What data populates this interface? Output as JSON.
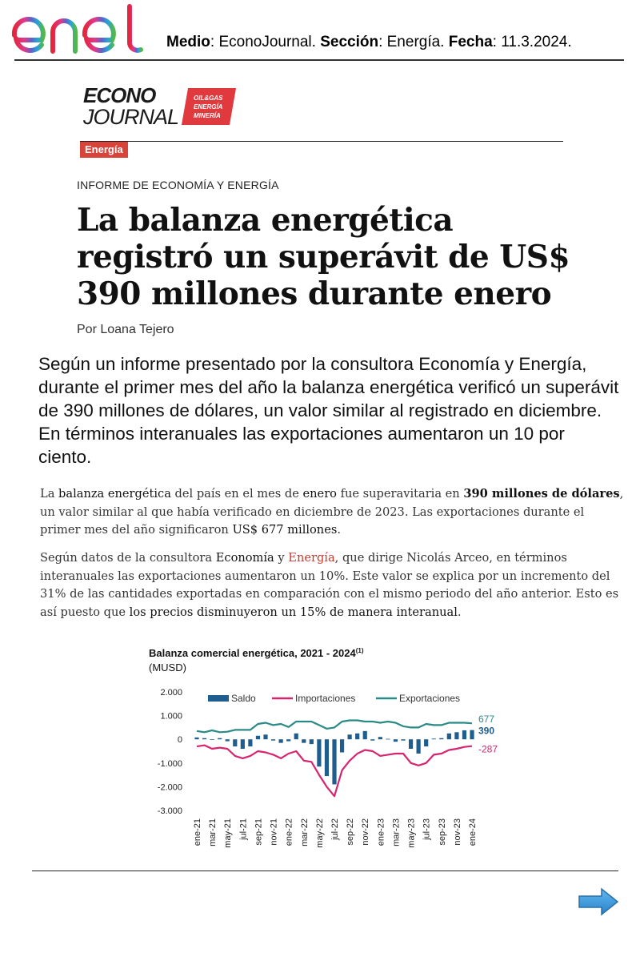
{
  "header": {
    "logo_text": "enel",
    "medio_label": "Medio",
    "medio_value": ": EconoJournal. ",
    "seccion_label": "Sección",
    "seccion_value": ": Energía. ",
    "fecha_label": "Fecha",
    "fecha_value": ": 11.3.2024."
  },
  "publication": {
    "name_line1": "ECONO",
    "name_line2": "JOURNAL",
    "badge_lines": [
      "OIL&GAS",
      "ENERGÍA",
      "MINERÍA"
    ]
  },
  "article": {
    "section": "Energía",
    "kicker": "INFORME DE ECONOMÍA Y ENERGÍA",
    "title": "La balanza energética registró un superávit de US$ 390 millones durante enero",
    "byline": "Por Loana Tejero",
    "lead": "Según un informe presentado por la consultora Economía y Energía, durante el primer mes del año la balanza energética verificó un superávit de 390 millones de dólares, un valor similar al registrado en diciembre. En términos interanuales las exportaciones aumentaron un 10 por ciento.",
    "p1": {
      "a": "La ",
      "b": "balanza energética",
      "c": " del país en el mes de ",
      "d": "enero",
      "e": " fue superavitaria en ",
      "f": "390 millones de dólares",
      "g": ", un valor similar al que había verificado en diciembre de 2023. Las exportaciones durante el primer mes del año significaron ",
      "h": "US$ 677 millones",
      "i": "."
    },
    "p2": {
      "a": "Según datos de la consultora ",
      "b": "Economía",
      "c": " y ",
      "d": "Energía",
      "e": ", que dirige Nicolás Arceo, en términos interanuales las exportaciones aumentaron un 10%. Este valor se explica por un incremento del 31% de las cantidades exportadas en comparación con el mismo periodo del año anterior. Esto es así puesto que ",
      "f": "los precios disminuyeron un 15% de manera interanual",
      "g": "."
    }
  },
  "chart_data": {
    "type": "bar+line",
    "title": "Balanza comercial energética, 2021 - 2024",
    "title_sup": "(1)",
    "subtitle": "(MUSD)",
    "y_ticks": [
      "2.000",
      "1.000",
      "0",
      "-1.000",
      "-2.000",
      "-3.000"
    ],
    "ylim": [
      -3000,
      2000
    ],
    "x_tick_labels": [
      "ene-21",
      "mar-21",
      "may-21",
      "jul-21",
      "sep-21",
      "nov-21",
      "ene-22",
      "mar-22",
      "may-22",
      "jul-22",
      "sep-22",
      "nov-22",
      "ene-23",
      "mar-23",
      "may-23",
      "jul-23",
      "sep-23",
      "nov-23",
      "ene-24"
    ],
    "legend": [
      "Saldo",
      "Importaciones",
      "Exportaciones"
    ],
    "colors": {
      "saldo": "#1f5d8f",
      "importaciones": "#d6246e",
      "exportaciones": "#2a8a85"
    },
    "end_labels": {
      "exportaciones": "677",
      "saldo": "390",
      "importaciones": "-287"
    },
    "months": [
      "ene-21",
      "feb-21",
      "mar-21",
      "abr-21",
      "may-21",
      "jun-21",
      "jul-21",
      "ago-21",
      "sep-21",
      "oct-21",
      "nov-21",
      "dic-21",
      "ene-22",
      "feb-22",
      "mar-22",
      "abr-22",
      "may-22",
      "jun-22",
      "jul-22",
      "ago-22",
      "sep-22",
      "oct-22",
      "nov-22",
      "dic-22",
      "ene-23",
      "feb-23",
      "mar-23",
      "abr-23",
      "may-23",
      "jun-23",
      "jul-23",
      "ago-23",
      "sep-23",
      "oct-23",
      "nov-23",
      "dic-23",
      "ene-24"
    ],
    "series": [
      {
        "name": "Saldo",
        "values": [
          80,
          50,
          -20,
          50,
          -80,
          -300,
          -400,
          -300,
          150,
          200,
          -50,
          -150,
          -80,
          250,
          -150,
          -200,
          -1150,
          -1550,
          -1900,
          -550,
          200,
          250,
          350,
          -50,
          100,
          20,
          -100,
          -50,
          -400,
          -600,
          -300,
          30,
          50,
          250,
          300,
          380,
          390
        ]
      },
      {
        "name": "Importaciones",
        "values": [
          -300,
          -250,
          -400,
          -350,
          -400,
          -700,
          -800,
          -700,
          -500,
          -550,
          -650,
          -800,
          -600,
          -500,
          -900,
          -950,
          -1500,
          -2000,
          -2400,
          -1300,
          -900,
          -600,
          -450,
          -500,
          -700,
          -650,
          -600,
          -600,
          -1000,
          -1100,
          -1000,
          -650,
          -600,
          -450,
          -400,
          -320,
          -287
        ]
      },
      {
        "name": "Exportaciones",
        "values": [
          350,
          300,
          380,
          300,
          320,
          400,
          400,
          400,
          650,
          700,
          600,
          650,
          520,
          750,
          750,
          750,
          600,
          450,
          500,
          750,
          800,
          800,
          750,
          750,
          700,
          750,
          700,
          550,
          500,
          500,
          650,
          600,
          600,
          700,
          700,
          700,
          677
        ]
      }
    ]
  },
  "navigation": {
    "next_icon": "arrow-right-icon"
  }
}
